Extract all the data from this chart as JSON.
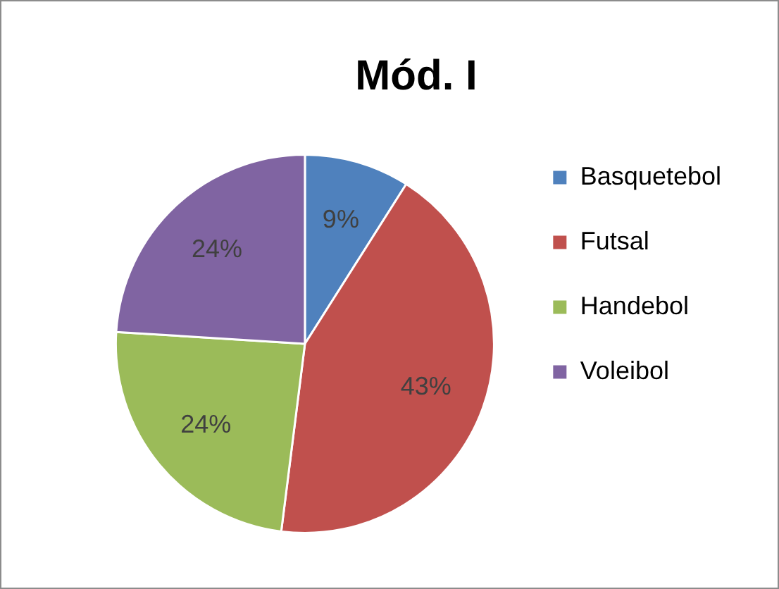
{
  "chart_data": {
    "type": "pie",
    "title": "Mód. I",
    "categories": [
      "Basquetebol",
      "Futsal",
      "Handebol",
      "Voleibol"
    ],
    "values": [
      9,
      43,
      24,
      24
    ],
    "colors": [
      "#4f81bd",
      "#c0504d",
      "#9bbb59",
      "#8064a2"
    ],
    "value_labels": [
      "9%",
      "43%",
      "24%",
      "24%"
    ],
    "legend": "right"
  }
}
